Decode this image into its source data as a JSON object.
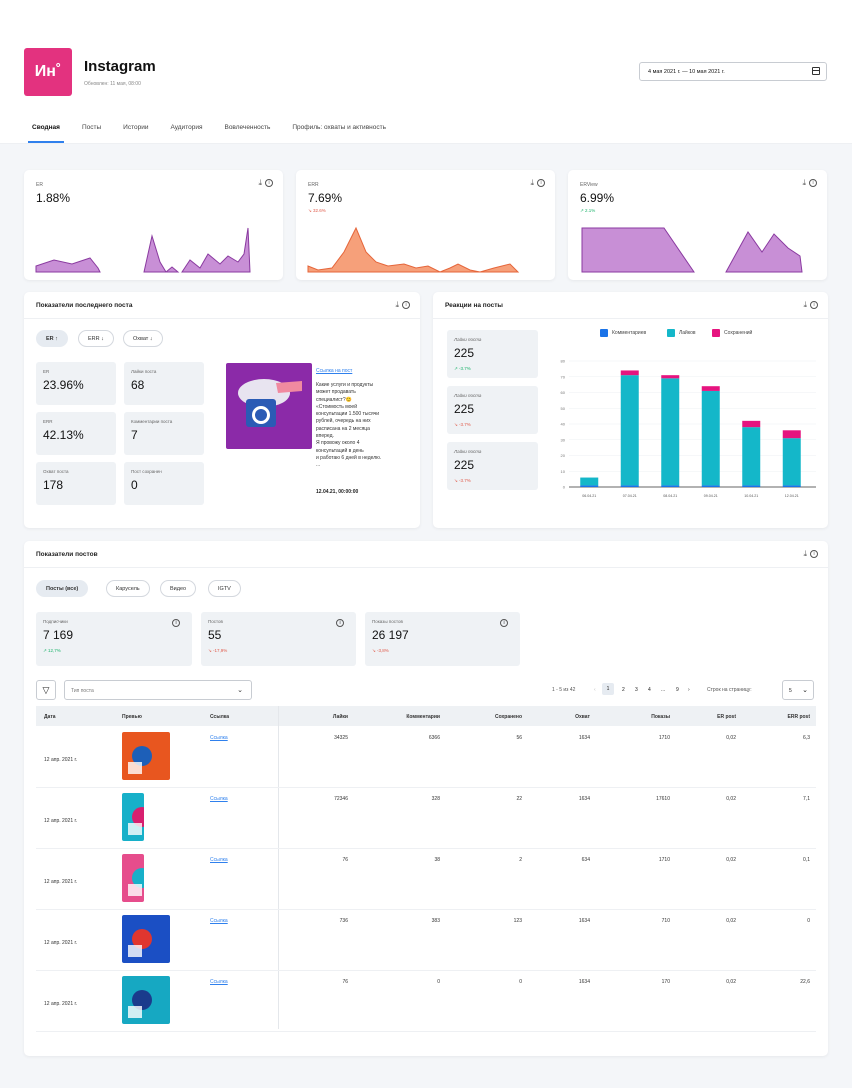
{
  "header": {
    "logo": "Ин˚",
    "title": "Instagram",
    "updated": "Обновлен: 11 мая, 08:00",
    "date_range": "4 мая 2021 г. — 10 мая 2021 г."
  },
  "tabs": [
    "Сводная",
    "Посты",
    "Истории",
    "Аудитория",
    "Вовлеченность",
    "Профиль: охваты и активность"
  ],
  "metrics": [
    {
      "label": "ER",
      "value": "1.88%",
      "delta": ""
    },
    {
      "label": "ERR",
      "value": "7.69%",
      "delta": "↘ 32.6%"
    },
    {
      "label": "ERView",
      "value": "6.99%",
      "delta": "↗ 2.1%"
    }
  ],
  "last_post": {
    "title": "Показатели последнего поста",
    "sort": [
      "ER ↑",
      "ERR ↓",
      "Охват ↓"
    ],
    "stats": [
      {
        "label": "ER",
        "value": "23.96%"
      },
      {
        "label": "Лайки поста",
        "value": "68"
      },
      {
        "label": "ERR",
        "value": "42.13%"
      },
      {
        "label": "Комментарии поста",
        "value": "7"
      },
      {
        "label": "Охват поста",
        "value": "178"
      },
      {
        "label": "Пост сохранен",
        "value": "0"
      }
    ],
    "link": "Ссылка на пост",
    "text": [
      "Какие услуги и продукты",
      "может продавать",
      "специалист?😊",
      "«Стоимость моей",
      "консультации 1.500 тысячи",
      "рублей, очередь на них",
      "расписана на 2 месяца",
      "вперед.",
      "Я провожу около 4",
      "консультаций в день",
      "и работаю 6 дней в неделю.",
      "..."
    ],
    "date": "12.04.21, 00:00:00"
  },
  "reactions": {
    "title": "Реакции на посты",
    "boxes": [
      {
        "label": "Лайки поста",
        "value": "225",
        "delta": "↗ -3.7%"
      },
      {
        "label": "Лайки поста",
        "value": "225",
        "delta": "↘ -3.7%"
      },
      {
        "label": "Лайки поста",
        "value": "225",
        "delta": "↘ -3.7%"
      }
    ]
  },
  "chart_data": {
    "type": "bar",
    "stacked": true,
    "categories": [
      "06.04.21",
      "07.04.21",
      "08.04.21",
      "09.04.21",
      "10.04.21",
      "12.04.21"
    ],
    "series": [
      {
        "name": "Комментариев",
        "values": [
          1,
          1,
          1,
          1,
          1,
          1
        ]
      },
      {
        "name": "Лайков",
        "values": [
          5,
          70,
          68,
          60,
          37,
          30
        ]
      },
      {
        "name": "Сохранений",
        "values": [
          0,
          3,
          2,
          3,
          4,
          5
        ]
      }
    ],
    "yticks": [
      "0",
      "10",
      "20",
      "30",
      "40",
      "50",
      "60",
      "70",
      "80"
    ],
    "ylim": [
      0,
      80
    ],
    "colors": [
      "#1a73e8",
      "#14b7c9",
      "#e6147f"
    ]
  },
  "posts": {
    "title": "Показатели постов",
    "filters": [
      "Посты (все)",
      "Карусель",
      "Видео",
      "IGTV"
    ],
    "summary": [
      {
        "label": "Подписчики",
        "value": "7 169",
        "delta": "↗ 12,7%"
      },
      {
        "label": "Постов",
        "value": "55",
        "delta": "↘ -17,9%"
      },
      {
        "label": "Показы постов",
        "value": "26 197",
        "delta": "↘ -3,8%"
      }
    ],
    "type_placeholder": "Тип поста",
    "pager": "1 - 5 из 42",
    "pages": [
      "1",
      "2",
      "3",
      "4",
      "...",
      "9"
    ],
    "per_page_label": "Строк на страницу:",
    "per_page": "5",
    "columns": [
      "Дата",
      "Превью",
      "Ссылка",
      "Лайки",
      "Комментарии",
      "Сохранено",
      "Охват",
      "Показы",
      "ER post",
      "ERR post"
    ],
    "rows": [
      [
        "12 апр. 2021 г.",
        "",
        "Ссылка",
        "34325",
        "6366",
        "56",
        "1634",
        "1710",
        "0,02",
        "6,3"
      ],
      [
        "12 апр. 2021 г.",
        "",
        "Ссылка",
        "72346",
        "328",
        "22",
        "1634",
        "17610",
        "0,02",
        "7,1"
      ],
      [
        "12 апр. 2021 г.",
        "",
        "Ссылка",
        "76",
        "38",
        "2",
        "634",
        "1710",
        "0,02",
        "0,1"
      ],
      [
        "12 апр. 2021 г.",
        "",
        "Ссылка",
        "736",
        "383",
        "123",
        "1634",
        "710",
        "0,02",
        "0"
      ],
      [
        "12 апр. 2021 г.",
        "",
        "Ссылка",
        "76",
        "0",
        "0",
        "1634",
        "170",
        "0,02",
        "22,6"
      ]
    ]
  }
}
